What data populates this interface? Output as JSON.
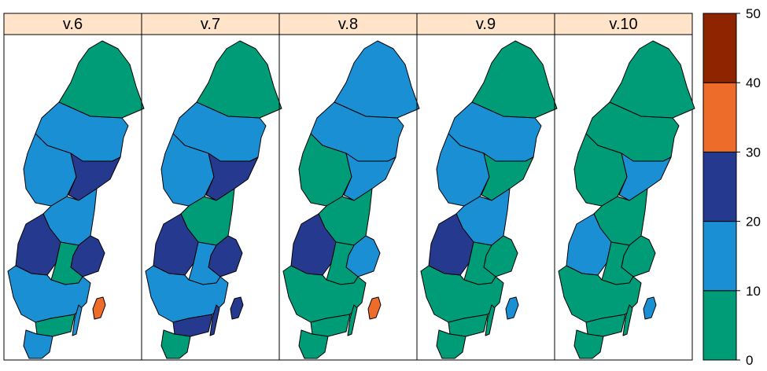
{
  "panels": [
    {
      "label": "v.6",
      "regions": {
        "north": 0,
        "upper": 1,
        "west": 1,
        "east": 2,
        "mid": 1,
        "varmland": 2,
        "stockholm": 2,
        "center": 0,
        "south": 1,
        "skane_band": 0,
        "gotland": 3,
        "oland": 1,
        "tip": 1
      }
    },
    {
      "label": "v.7",
      "regions": {
        "north": 0,
        "upper": 1,
        "west": 1,
        "east": 2,
        "mid": 0,
        "varmland": 2,
        "stockholm": 2,
        "center": 1,
        "south": 1,
        "skane_band": 2,
        "gotland": 2,
        "oland": 2,
        "tip": 0
      }
    },
    {
      "label": "v.8",
      "regions": {
        "north": 1,
        "upper": 1,
        "west": 0,
        "east": 1,
        "mid": 0,
        "varmland": 2,
        "stockholm": 1,
        "center": 0,
        "south": 0,
        "skane_band": 0,
        "gotland": 3,
        "oland": 0,
        "tip": 0
      }
    },
    {
      "label": "v.9",
      "regions": {
        "north": 0,
        "upper": 1,
        "west": 1,
        "east": 0,
        "mid": 1,
        "varmland": 2,
        "stockholm": 0,
        "center": 0,
        "south": 0,
        "skane_band": 0,
        "gotland": 1,
        "oland": 0,
        "tip": 0
      }
    },
    {
      "label": "v.10",
      "regions": {
        "north": 0,
        "upper": 0,
        "west": 0,
        "east": 1,
        "mid": 0,
        "varmland": 1,
        "stockholm": 0,
        "center": 0,
        "south": 0,
        "skane_band": 0,
        "gotland": 1,
        "oland": 0,
        "tip": 0
      }
    }
  ],
  "legend": {
    "breaks": [
      "0",
      "10",
      "20",
      "30",
      "40",
      "50"
    ],
    "bins": [
      {
        "from": 0,
        "to": 10,
        "color": "#009b77"
      },
      {
        "from": 10,
        "to": 20,
        "color": "#1b8fd3"
      },
      {
        "from": 20,
        "to": 30,
        "color": "#253a8f"
      },
      {
        "from": 30,
        "to": 40,
        "color": "#ee6c2a"
      },
      {
        "from": 40,
        "to": 50,
        "color": "#8e2400"
      }
    ]
  }
}
